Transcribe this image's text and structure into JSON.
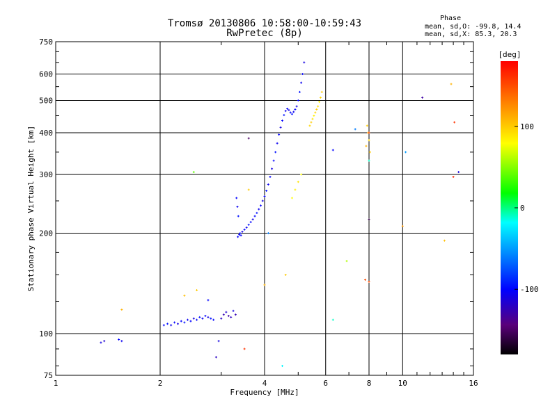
{
  "chart_data": {
    "type": "scatter",
    "title": "Tromsø 20130806 10:58:00-10:59:43",
    "subtitle": "RwPretec (8p)",
    "xlabel": "Frequency [MHz]",
    "ylabel": "Stationary phase Virtual Height [km]",
    "x_scale": "log",
    "y_scale": "log",
    "xlim": [
      1,
      16
    ],
    "ylim": [
      75,
      750
    ],
    "x_ticks": [
      1,
      2,
      4,
      6,
      8,
      10,
      16
    ],
    "x_tick_labels": [
      "1",
      "2",
      "4",
      "6",
      "8",
      "10",
      "16"
    ],
    "y_ticks": [
      75,
      100,
      200,
      300,
      400,
      500,
      600,
      750
    ],
    "y_tick_labels": [
      "75",
      "100",
      "200",
      "300",
      "400",
      "500",
      "600",
      "750"
    ],
    "grid": true,
    "phase_stats": {
      "title": "Phase",
      "line_o": "mean, sd,O: -99.8, 14.4",
      "line_x": "mean, sd,X:  85.3, 20.3"
    },
    "colorbar": {
      "label": "[deg]",
      "min": -180,
      "max": 180,
      "ticks": [
        100,
        0,
        -100
      ],
      "tick_labels": [
        "100",
        "0",
        "-100"
      ]
    },
    "series": [
      {
        "points": [
          [
            1.35,
            94,
            -110
          ],
          [
            1.38,
            95,
            -115
          ],
          [
            1.52,
            96,
            -100
          ],
          [
            1.55,
            95,
            -105
          ],
          [
            2.05,
            106,
            -100
          ],
          [
            2.1,
            107,
            -95
          ],
          [
            2.15,
            106,
            -105
          ],
          [
            2.2,
            108,
            -100
          ],
          [
            2.25,
            107,
            -110
          ],
          [
            2.3,
            109,
            -100
          ],
          [
            2.35,
            108,
            -95
          ],
          [
            2.4,
            110,
            -105
          ],
          [
            2.45,
            109,
            -100
          ],
          [
            2.5,
            111,
            -110
          ],
          [
            2.55,
            110,
            -100
          ],
          [
            2.6,
            112,
            -95
          ],
          [
            2.65,
            111,
            -105
          ],
          [
            2.7,
            113,
            -100
          ],
          [
            2.75,
            112,
            -110
          ],
          [
            2.8,
            111,
            -95
          ],
          [
            2.85,
            110,
            -100
          ],
          [
            3.0,
            111,
            -120
          ],
          [
            3.05,
            114,
            -125
          ],
          [
            3.1,
            116,
            -115
          ],
          [
            3.15,
            113,
            -130
          ],
          [
            3.2,
            112,
            -120
          ],
          [
            3.25,
            117,
            -110
          ],
          [
            3.3,
            114,
            -125
          ],
          [
            3.35,
            195,
            -100
          ],
          [
            3.38,
            198,
            -105
          ],
          [
            3.4,
            200,
            -95
          ],
          [
            3.42,
            197,
            -100
          ],
          [
            3.45,
            202,
            -110
          ],
          [
            3.5,
            205,
            -100
          ],
          [
            3.55,
            208,
            -105
          ],
          [
            3.6,
            212,
            -95
          ],
          [
            3.65,
            216,
            -100
          ],
          [
            3.7,
            220,
            -110
          ],
          [
            3.75,
            225,
            -100
          ],
          [
            3.8,
            230,
            -95
          ],
          [
            3.85,
            236,
            -105
          ],
          [
            3.9,
            242,
            -100
          ],
          [
            3.95,
            250,
            -110
          ],
          [
            4.0,
            258,
            -100
          ],
          [
            4.05,
            268,
            -95
          ],
          [
            4.1,
            280,
            -105
          ],
          [
            4.15,
            295,
            -100
          ],
          [
            4.2,
            312,
            -110
          ],
          [
            4.25,
            330,
            -100
          ],
          [
            4.3,
            350,
            -95
          ],
          [
            4.35,
            372,
            -105
          ],
          [
            4.4,
            395,
            -100
          ],
          [
            4.45,
            415,
            -110
          ],
          [
            4.5,
            435,
            -100
          ],
          [
            4.55,
            452,
            -95
          ],
          [
            4.6,
            465,
            -105
          ],
          [
            4.65,
            472,
            -100
          ],
          [
            4.7,
            468,
            -110
          ],
          [
            4.75,
            460,
            -100
          ],
          [
            4.8,
            455,
            -95
          ],
          [
            4.85,
            462,
            -105
          ],
          [
            4.9,
            470,
            -100
          ],
          [
            4.95,
            480,
            -110
          ],
          [
            5.0,
            500,
            -100
          ],
          [
            5.05,
            530,
            -95
          ],
          [
            5.1,
            565,
            -105
          ],
          [
            5.15,
            600,
            -100
          ],
          [
            5.2,
            650,
            -110
          ],
          [
            3.32,
            255,
            -100
          ],
          [
            3.34,
            240,
            -105
          ],
          [
            3.36,
            225,
            -95
          ],
          [
            5.4,
            420,
            95
          ],
          [
            5.45,
            430,
            100
          ],
          [
            5.5,
            440,
            90
          ],
          [
            5.55,
            450,
            85
          ],
          [
            5.6,
            460,
            95
          ],
          [
            5.65,
            470,
            100
          ],
          [
            5.7,
            480,
            90
          ],
          [
            5.75,
            495,
            85
          ],
          [
            5.8,
            510,
            95
          ],
          [
            5.85,
            530,
            100
          ],
          [
            4.8,
            255,
            80
          ],
          [
            4.9,
            270,
            85
          ],
          [
            5.0,
            285,
            90
          ],
          [
            5.1,
            300,
            80
          ],
          [
            7.9,
            420,
            100
          ],
          [
            7.95,
            400,
            105
          ],
          [
            8.0,
            380,
            95
          ],
          [
            7.85,
            365,
            110
          ],
          [
            8.05,
            350,
            100
          ],
          [
            1.55,
            118,
            110
          ],
          [
            2.35,
            130,
            105
          ],
          [
            2.55,
            135,
            100
          ],
          [
            3.6,
            270,
            100
          ],
          [
            4.0,
            140,
            110
          ],
          [
            4.6,
            150,
            100
          ],
          [
            13.8,
            560,
            110
          ],
          [
            13.2,
            190,
            105
          ],
          [
            10.0,
            210,
            120
          ],
          [
            2.5,
            305,
            40
          ],
          [
            6.9,
            165,
            60
          ],
          [
            6.3,
            110,
            -10
          ],
          [
            4.5,
            80,
            -20
          ],
          [
            7.8,
            145,
            150
          ],
          [
            8.0,
            143,
            150
          ],
          [
            3.5,
            90,
            160
          ],
          [
            14.1,
            430,
            160
          ],
          [
            14.0,
            295,
            165
          ],
          [
            8.0,
            400,
            155
          ],
          [
            3.6,
            385,
            -150
          ],
          [
            4.1,
            200,
            -60
          ],
          [
            7.3,
            410,
            -60
          ],
          [
            8.0,
            330,
            -10
          ],
          [
            10.2,
            350,
            -50
          ],
          [
            11.4,
            510,
            -130
          ],
          [
            14.5,
            305,
            -110
          ],
          [
            6.3,
            355,
            -100
          ],
          [
            8.0,
            220,
            -160
          ],
          [
            2.9,
            85,
            -120
          ],
          [
            2.95,
            95,
            -110
          ],
          [
            2.75,
            126,
            -100
          ]
        ]
      }
    ]
  }
}
